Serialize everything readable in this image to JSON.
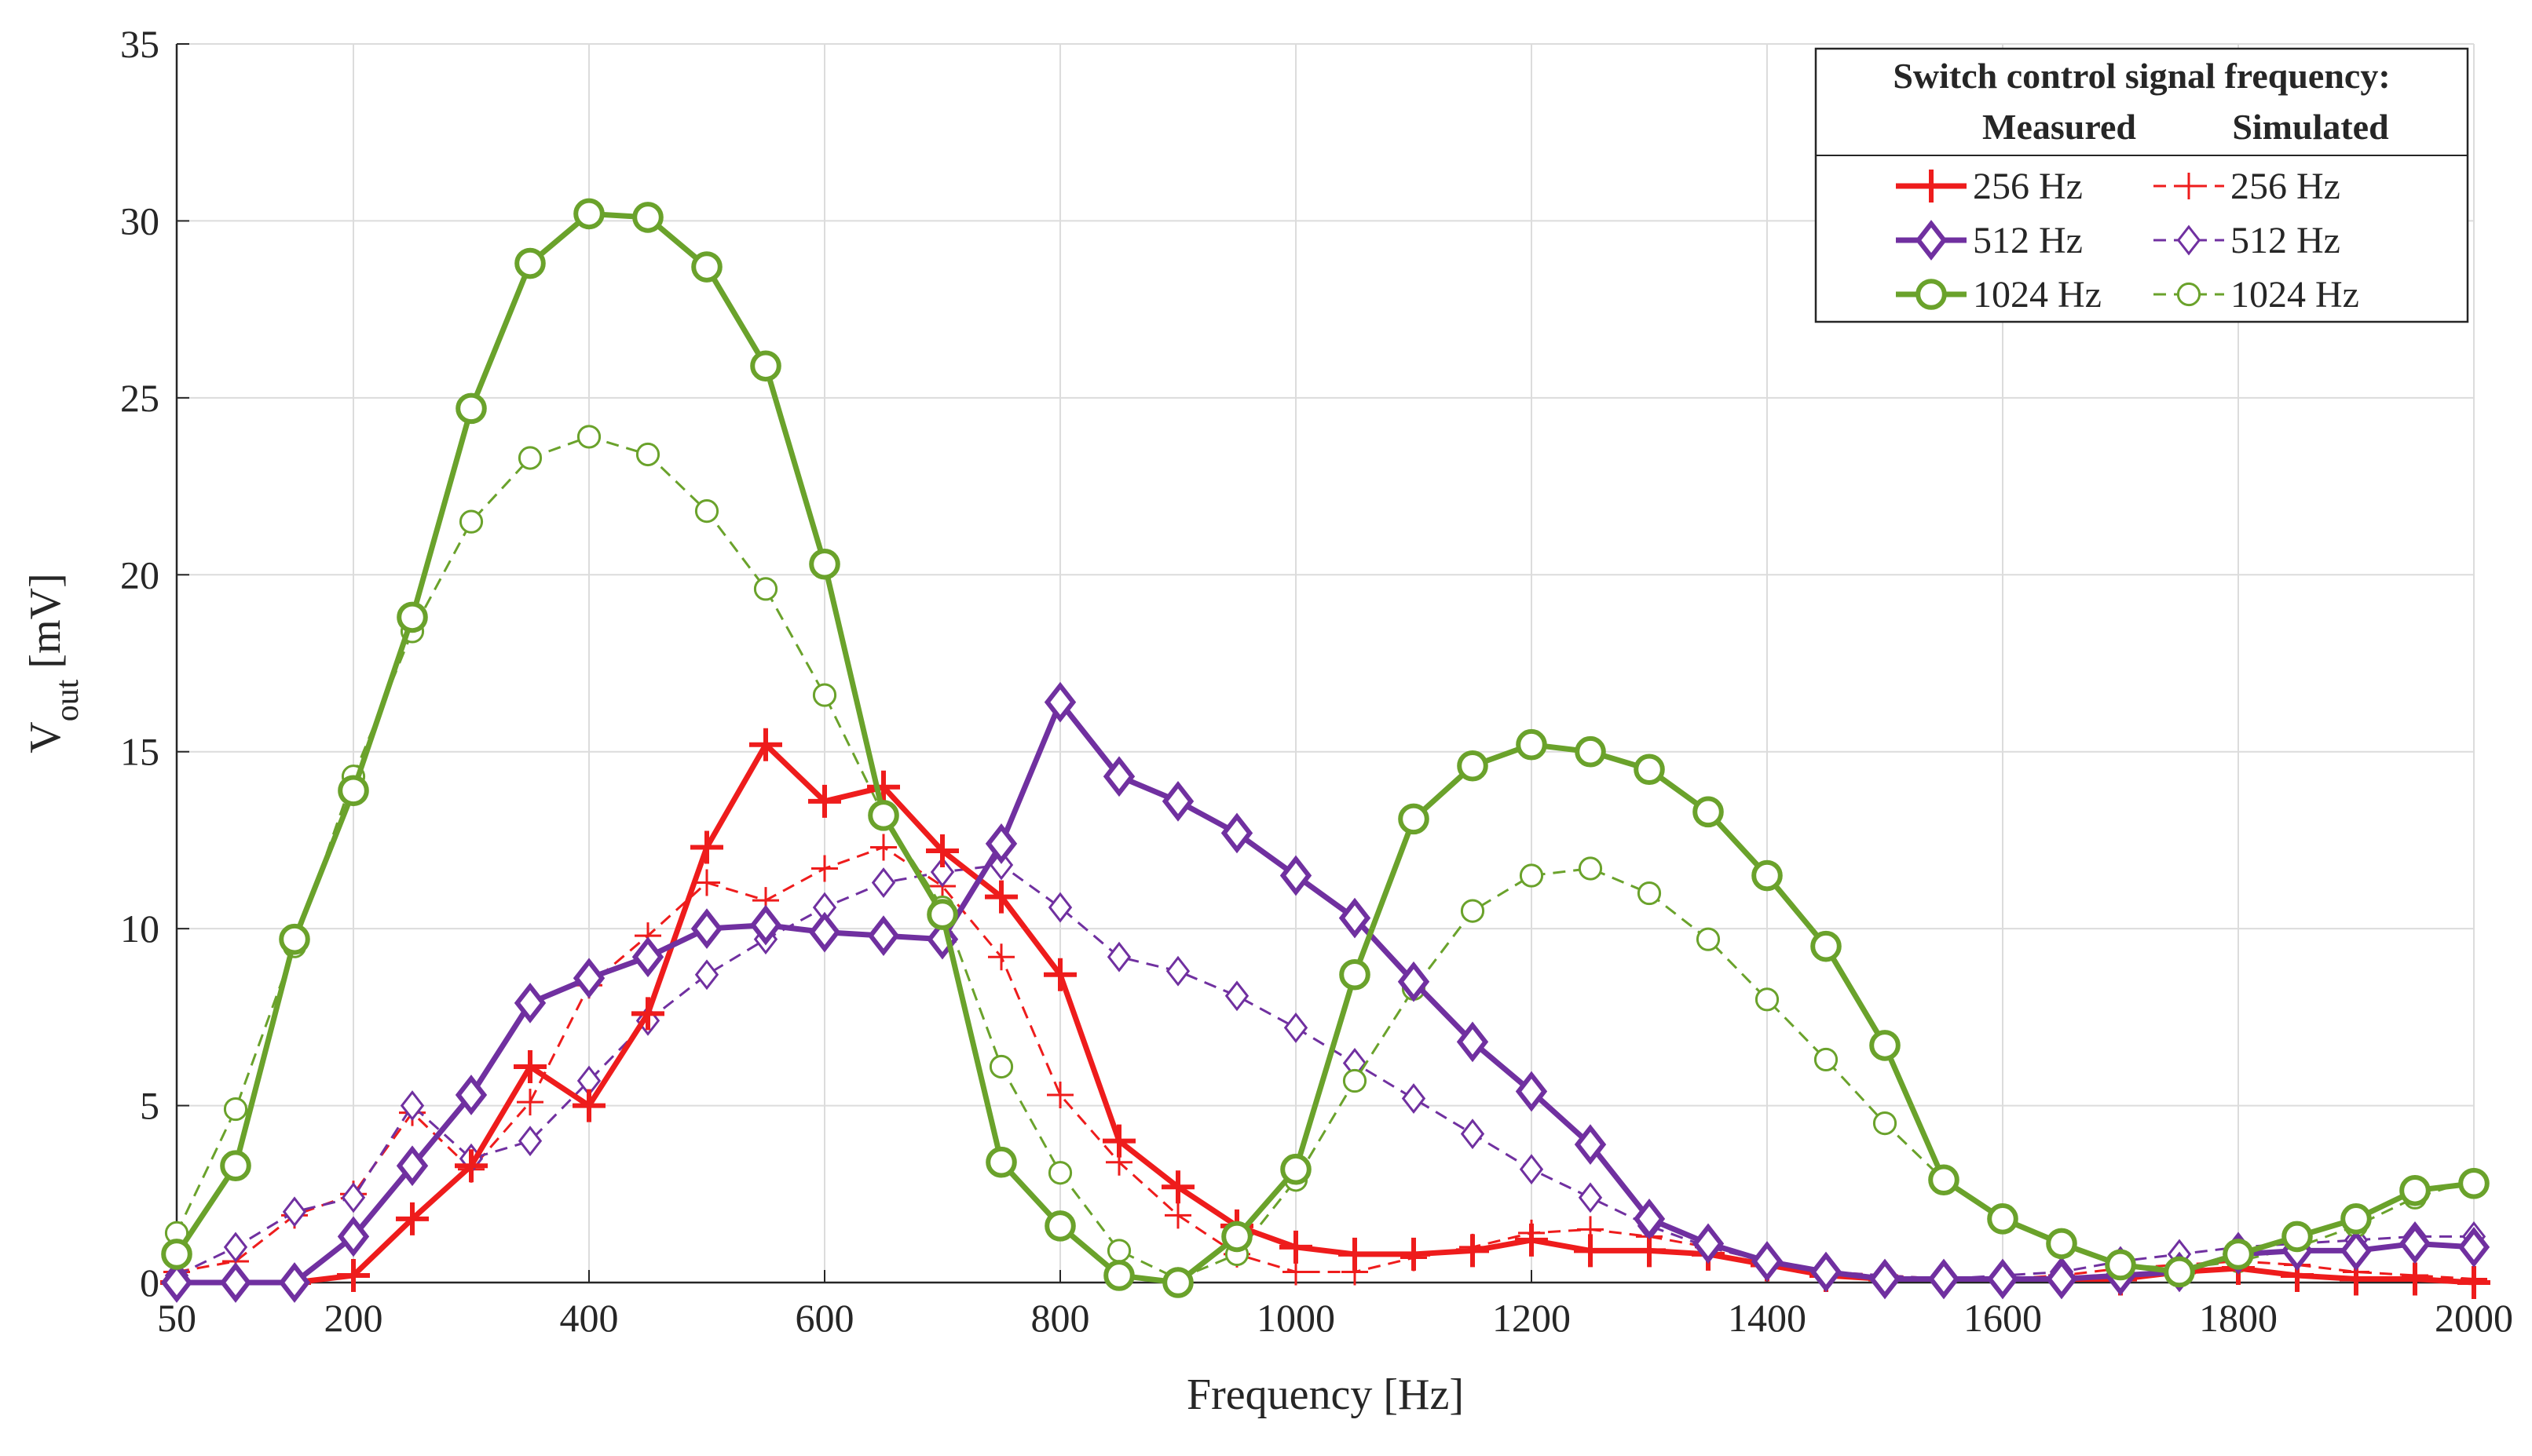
{
  "chart_data": {
    "type": "line",
    "xlabel": "Frequency [Hz]",
    "ylabel_main": "V",
    "ylabel_sub": "out",
    "ylabel_unit": "[mV]",
    "xlim": [
      50,
      2000
    ],
    "ylim": [
      0,
      35
    ],
    "grid": true,
    "xticks": [
      50,
      200,
      400,
      600,
      800,
      1000,
      1200,
      1400,
      1600,
      1800,
      2000
    ],
    "yticks": [
      0,
      5,
      10,
      15,
      20,
      25,
      30,
      35
    ],
    "x": [
      50,
      100,
      150,
      200,
      250,
      300,
      350,
      400,
      450,
      500,
      550,
      600,
      650,
      700,
      750,
      800,
      850,
      900,
      950,
      1000,
      1050,
      1100,
      1150,
      1200,
      1250,
      1300,
      1350,
      1400,
      1450,
      1500,
      1550,
      1600,
      1650,
      1700,
      1750,
      1800,
      1850,
      1900,
      1950,
      2000
    ],
    "legend": {
      "title": "Switch control signal frequency:",
      "col_measured": "Measured",
      "col_simulated": "Simulated",
      "position": "top-right"
    },
    "colors": {
      "red": "#ee1c1c",
      "purple": "#7030a0",
      "green": "#6aa22b"
    },
    "series": [
      {
        "name": "256 Hz",
        "group": "Measured",
        "color": "#ee1c1c",
        "marker": "plus",
        "style": "solid",
        "values": [
          0,
          0,
          0,
          0.2,
          1.8,
          3.3,
          6.1,
          5.0,
          7.6,
          12.3,
          15.2,
          13.6,
          14.0,
          12.2,
          10.9,
          8.7,
          4.0,
          2.7,
          1.6,
          1.0,
          0.8,
          0.8,
          0.9,
          1.2,
          0.9,
          0.9,
          0.8,
          0.5,
          0.2,
          0.1,
          0.1,
          0.1,
          0.1,
          0.1,
          0.3,
          0.4,
          0.2,
          0.1,
          0.1,
          0.0
        ]
      },
      {
        "name": "256 Hz",
        "group": "Simulated",
        "color": "#ee1c1c",
        "marker": "plus",
        "style": "dashed",
        "values": [
          0.3,
          0.6,
          1.9,
          2.5,
          4.8,
          3.2,
          5.1,
          8.4,
          9.8,
          11.3,
          10.8,
          11.7,
          12.3,
          11.2,
          9.2,
          5.3,
          3.4,
          1.9,
          0.8,
          0.3,
          0.3,
          0.7,
          1.0,
          1.4,
          1.5,
          1.3,
          1.0,
          0.6,
          0.3,
          0.2,
          0.1,
          0.1,
          0.2,
          0.4,
          0.5,
          0.6,
          0.5,
          0.3,
          0.2,
          0.1
        ]
      },
      {
        "name": "512 Hz",
        "group": "Measured",
        "color": "#7030a0",
        "marker": "diamond",
        "style": "solid",
        "values": [
          0,
          0,
          0,
          1.3,
          3.3,
          5.3,
          7.9,
          8.6,
          9.2,
          10.0,
          10.1,
          9.9,
          9.8,
          9.7,
          12.4,
          16.4,
          14.3,
          13.6,
          12.7,
          11.5,
          10.3,
          8.5,
          6.8,
          5.4,
          3.9,
          1.8,
          1.1,
          0.6,
          0.3,
          0.1,
          0.1,
          0.1,
          0.1,
          0.2,
          0.3,
          0.8,
          0.9,
          0.9,
          1.1,
          1.0
        ]
      },
      {
        "name": "512 Hz",
        "group": "Simulated",
        "color": "#7030a0",
        "marker": "diamond",
        "style": "dashed",
        "values": [
          0.2,
          1.0,
          2.0,
          2.4,
          5.0,
          3.5,
          4.0,
          5.7,
          7.4,
          8.7,
          9.7,
          10.6,
          11.3,
          11.6,
          11.8,
          10.6,
          9.2,
          8.8,
          8.1,
          7.2,
          6.2,
          5.2,
          4.2,
          3.2,
          2.4,
          1.6,
          1.0,
          0.6,
          0.3,
          0.2,
          0.1,
          0.2,
          0.3,
          0.6,
          0.8,
          1.0,
          1.1,
          1.2,
          1.3,
          1.3
        ]
      },
      {
        "name": "1024 Hz",
        "group": "Measured",
        "color": "#6aa22b",
        "marker": "circle",
        "style": "solid",
        "values": [
          0.8,
          3.3,
          9.7,
          13.9,
          18.8,
          24.7,
          28.8,
          30.2,
          30.1,
          28.7,
          25.9,
          20.3,
          13.2,
          10.4,
          3.4,
          1.6,
          0.2,
          0.0,
          1.3,
          3.2,
          8.7,
          13.1,
          14.6,
          15.2,
          15.0,
          14.5,
          13.3,
          11.5,
          9.5,
          6.7,
          2.9,
          1.8,
          1.1,
          0.5,
          0.3,
          0.8,
          1.3,
          1.8,
          2.6,
          2.8
        ]
      },
      {
        "name": "1024 Hz",
        "group": "Simulated",
        "color": "#6aa22b",
        "marker": "circle",
        "style": "dashed",
        "values": [
          1.4,
          4.9,
          9.5,
          14.3,
          18.4,
          21.5,
          23.3,
          23.9,
          23.4,
          21.8,
          19.6,
          16.6,
          13.2,
          10.6,
          6.1,
          3.1,
          0.9,
          0.1,
          0.8,
          2.9,
          5.7,
          8.3,
          10.5,
          11.5,
          11.7,
          11.0,
          9.7,
          8.0,
          6.3,
          4.5,
          2.9,
          1.8,
          1.1,
          0.5,
          0.4,
          0.6,
          1.0,
          1.6,
          2.4,
          2.9
        ]
      }
    ]
  }
}
